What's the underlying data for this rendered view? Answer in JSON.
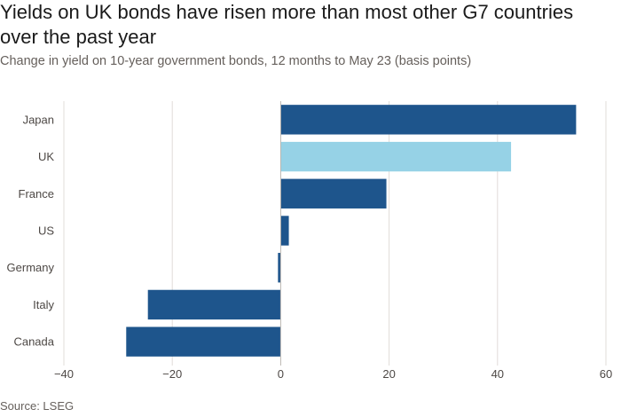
{
  "title": "Yields on UK bonds have risen more than most other G7 countries over the past year",
  "subtitle": "Change in yield on 10-year government bonds, 12 months to May 23 (basis points)",
  "source": "Source: LSEG",
  "colors": {
    "default_bar": "#1e558c",
    "highlight_bar": "#96d2e6",
    "gridline": "#e0dcd8",
    "zero_line": "#bcb6b1"
  },
  "chart_data": {
    "type": "bar",
    "orientation": "horizontal",
    "categories": [
      "Japan",
      "UK",
      "France",
      "US",
      "Germany",
      "Italy",
      "Canada"
    ],
    "values": [
      54.5,
      42.5,
      19.5,
      1.5,
      -0.5,
      -24.5,
      -28.5
    ],
    "highlight": "UK",
    "xlim": [
      -40,
      60
    ],
    "xticks": [
      -40,
      -20,
      0,
      20,
      40,
      60
    ],
    "grid": true,
    "title": "Yields on UK bonds have risen more than most other G7 countries over the past year",
    "subtitle": "Change in yield on 10-year government bonds, 12 months to May 23 (basis points)",
    "xlabel": "",
    "ylabel": ""
  }
}
